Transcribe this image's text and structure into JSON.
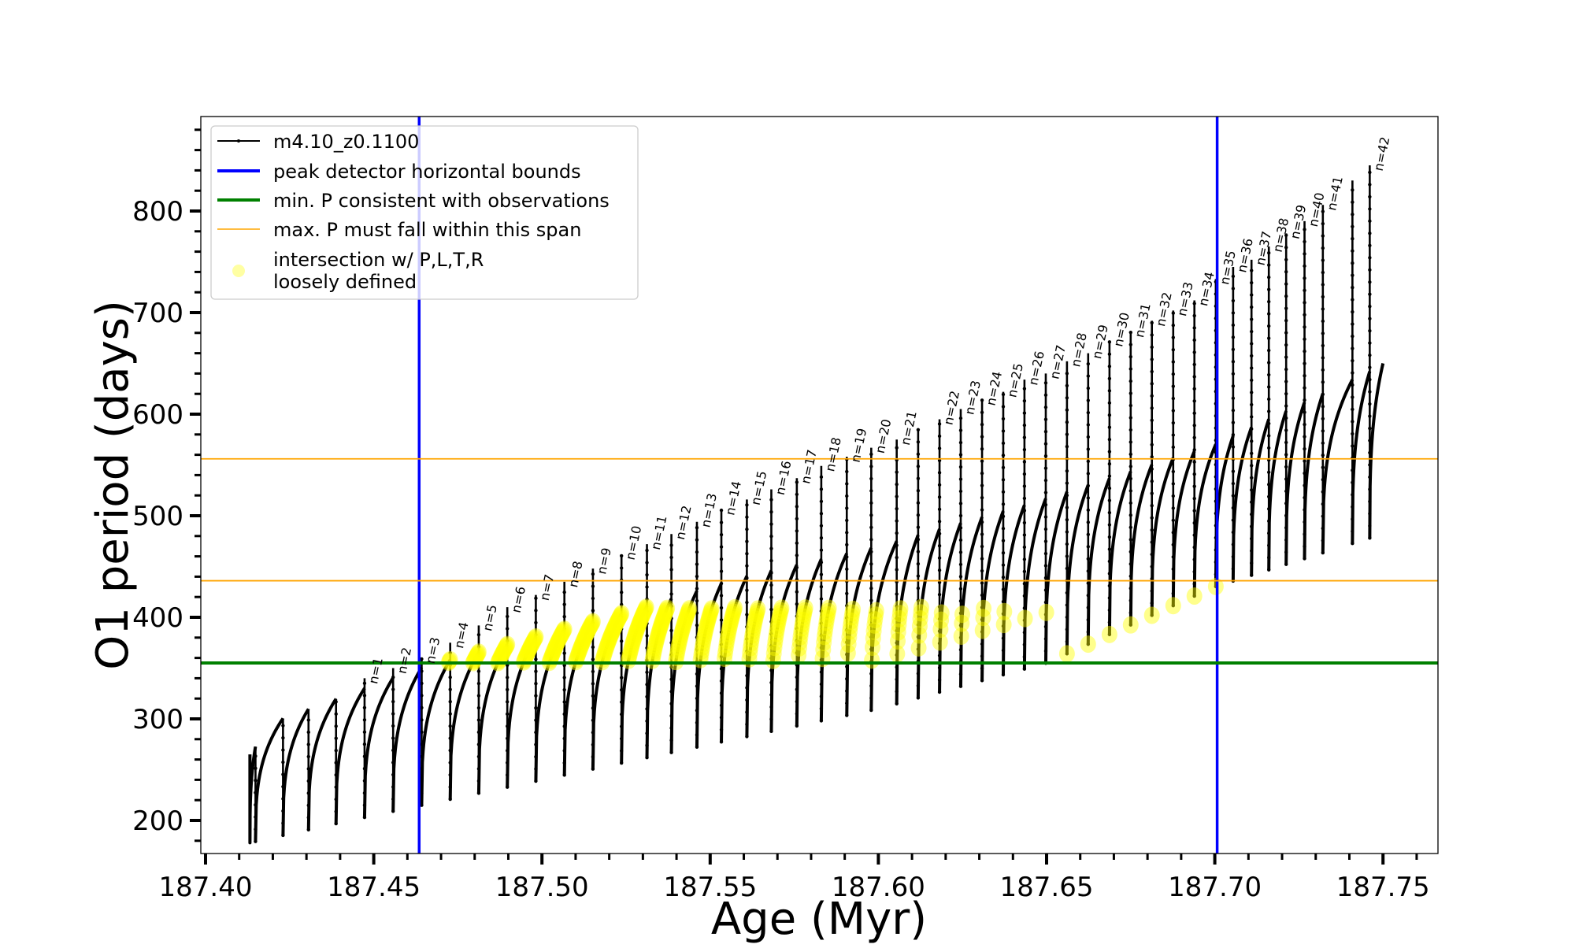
{
  "chart_data": {
    "type": "line",
    "title": "",
    "xlabel": "Age (Myr)",
    "ylabel": "O1 period (days)",
    "xlim": [
      187.398,
      187.766
    ],
    "ylim": [
      167,
      893
    ],
    "x_ticks": [
      "187.40",
      "187.45",
      "187.50",
      "187.55",
      "187.60",
      "187.65",
      "187.70",
      "187.75"
    ],
    "y_ticks": [
      "200",
      "300",
      "400",
      "500",
      "600",
      "700",
      "800"
    ],
    "grid": false,
    "legend_position": "top-left",
    "legend": [
      {
        "label": "m4.10_z0.1100",
        "color": "#000000",
        "style": "line-dot"
      },
      {
        "label": "peak detector horizontal bounds",
        "color": "#0000ff",
        "style": "line"
      },
      {
        "label": "min. P consistent with observations",
        "color": "#008000",
        "style": "line"
      },
      {
        "label": "max. P must fall within this span",
        "color": "#ffa500",
        "style": "thin-line"
      },
      {
        "label": "intersection w/ P,L,T,R\nloosely defined",
        "color": "#ffff00",
        "style": "marker"
      }
    ],
    "series_name": "m4.10_z0.1100",
    "start_age": 187.4132,
    "start_period": 265,
    "end_age": 187.75,
    "drops": [
      {
        "age": 187.41485,
        "spike": null,
        "label": ""
      },
      {
        "age": 187.42303,
        "spike": null,
        "label": ""
      },
      {
        "age": 187.43061,
        "spike": null,
        "label": ""
      },
      {
        "age": 187.43879,
        "spike": null,
        "label": ""
      },
      {
        "age": 187.44727,
        "spike": 340,
        "label": "n=1"
      },
      {
        "age": 187.45576,
        "spike": 350,
        "label": "n=2"
      },
      {
        "age": 187.46424,
        "spike": 360,
        "label": "n=3"
      },
      {
        "age": 187.47273,
        "spike": 375,
        "label": "n=4"
      },
      {
        "age": 187.48121,
        "spike": 392,
        "label": "n=5"
      },
      {
        "age": 187.4897,
        "spike": 410,
        "label": "n=6"
      },
      {
        "age": 187.49818,
        "spike": 422,
        "label": "n=7"
      },
      {
        "age": 187.50667,
        "spike": 435,
        "label": "n=8"
      },
      {
        "age": 187.51515,
        "spike": 448,
        "label": "n=9"
      },
      {
        "age": 187.52364,
        "spike": 462,
        "label": "n=10"
      },
      {
        "age": 187.53121,
        "spike": 472,
        "label": "n=11"
      },
      {
        "age": 187.53848,
        "spike": 482,
        "label": "n=12"
      },
      {
        "age": 187.54606,
        "spike": 494,
        "label": "n=13"
      },
      {
        "age": 187.55333,
        "spike": 506,
        "label": "n=14"
      },
      {
        "age": 187.56091,
        "spike": 516,
        "label": "n=15"
      },
      {
        "age": 187.56818,
        "spike": 526,
        "label": "n=16"
      },
      {
        "age": 187.57576,
        "spike": 537,
        "label": "n=17"
      },
      {
        "age": 187.58303,
        "spike": 549,
        "label": "n=18"
      },
      {
        "age": 187.59061,
        "spike": 558,
        "label": "n=19"
      },
      {
        "age": 187.59788,
        "spike": 567,
        "label": "n=20"
      },
      {
        "age": 187.60545,
        "spike": 575,
        "label": "n=21"
      },
      {
        "age": 187.61182,
        "spike": 585,
        "label": ""
      },
      {
        "age": 187.61818,
        "spike": 595,
        "label": "n=22"
      },
      {
        "age": 187.62448,
        "spike": 605,
        "label": "n=23"
      },
      {
        "age": 187.63082,
        "spike": 614,
        "label": "n=24"
      },
      {
        "age": 187.63712,
        "spike": 622,
        "label": "n=25"
      },
      {
        "age": 187.64342,
        "spike": 634,
        "label": "n=26"
      },
      {
        "age": 187.64976,
        "spike": 640,
        "label": "n=27"
      },
      {
        "age": 187.65606,
        "spike": 652,
        "label": "n=28"
      },
      {
        "age": 187.66236,
        "spike": 660,
        "label": "n=29"
      },
      {
        "age": 187.6687,
        "spike": 672,
        "label": "n=30"
      },
      {
        "age": 187.675,
        "spike": 681,
        "label": "n=31"
      },
      {
        "age": 187.6813,
        "spike": 692,
        "label": "n=32"
      },
      {
        "age": 187.68764,
        "spike": 702,
        "label": "n=33"
      },
      {
        "age": 187.69394,
        "spike": 712,
        "label": "n=34"
      },
      {
        "age": 187.7003,
        "spike": 733,
        "label": "n=35"
      },
      {
        "age": 187.70545,
        "spike": 745,
        "label": "n=36"
      },
      {
        "age": 187.71091,
        "spike": 752,
        "label": "n=37"
      },
      {
        "age": 187.71606,
        "spike": 765,
        "label": "n=38"
      },
      {
        "age": 187.72121,
        "spike": 778,
        "label": "n=39"
      },
      {
        "age": 187.72667,
        "spike": 790,
        "label": "n=40"
      },
      {
        "age": 187.73212,
        "spike": 806,
        "label": "n=41"
      },
      {
        "age": 187.74091,
        "spike": 830,
        "label": ""
      },
      {
        "age": 187.74606,
        "spike": 845,
        "label": "n=42"
      }
    ],
    "envelope_peak": [
      [
        187.413,
        265
      ],
      [
        187.421,
        298
      ],
      [
        187.4635,
        350
      ],
      [
        187.52,
        400
      ],
      [
        187.56,
        440
      ],
      [
        187.6,
        470
      ],
      [
        187.645,
        512
      ],
      [
        187.7,
        570
      ],
      [
        187.746,
        642
      ],
      [
        187.75,
        650
      ]
    ],
    "envelope_min": [
      [
        187.413,
        178
      ],
      [
        187.45,
        205
      ],
      [
        187.5,
        240
      ],
      [
        187.55,
        275
      ],
      [
        187.6,
        310
      ],
      [
        187.65,
        355
      ],
      [
        187.7,
        430
      ],
      [
        187.746,
        478
      ],
      [
        187.75,
        480
      ]
    ],
    "peak_detector_bounds": [
      187.4635,
      187.7007
    ],
    "min_P_observed": 355,
    "max_P_span": [
      436,
      556
    ],
    "intersection_band": {
      "age_range": [
        187.466,
        187.701
      ],
      "period_min": 355,
      "period_max": 410
    }
  }
}
